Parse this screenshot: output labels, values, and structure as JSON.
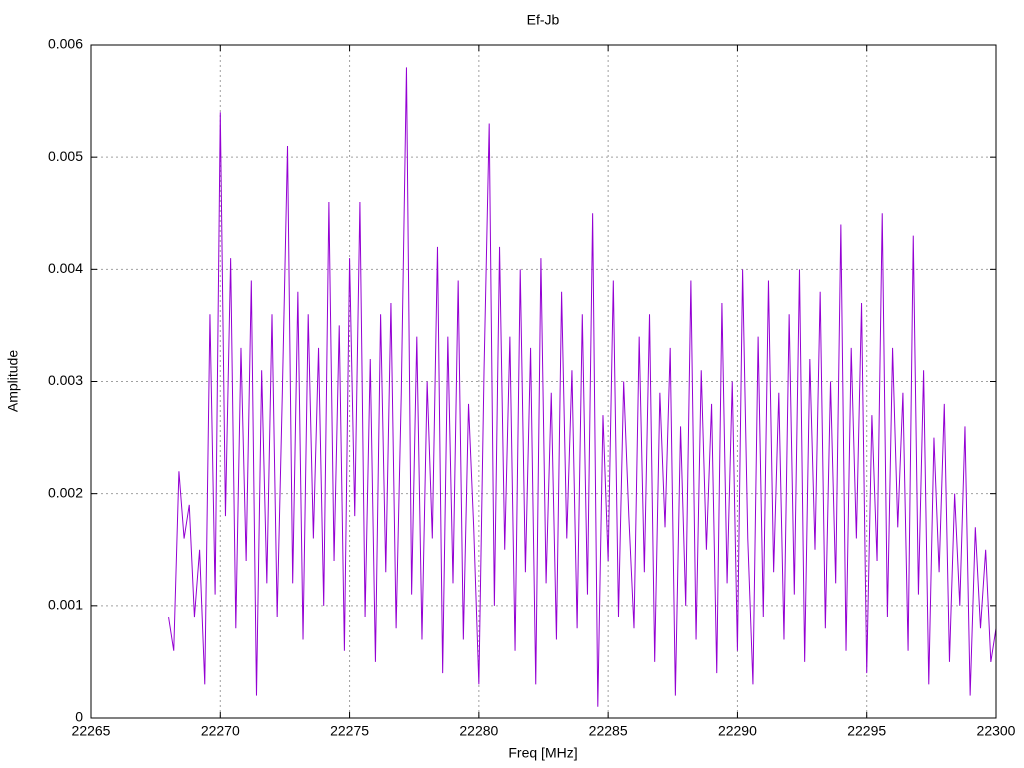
{
  "chart_data": {
    "type": "line",
    "title": "Ef-Jb",
    "xlabel": "Freq [MHz]",
    "ylabel": "Amplitude",
    "xlim": [
      22265,
      22300
    ],
    "xticks": [
      22265,
      22270,
      22275,
      22280,
      22285,
      22290,
      22295,
      22300
    ],
    "ylim": [
      0,
      0.006
    ],
    "yticks": [
      0,
      0.001,
      0.002,
      0.003,
      0.004,
      0.005,
      0.006
    ],
    "grid": true,
    "x": [
      22268.0,
      22268.2,
      22268.4,
      22268.6,
      22268.8,
      22269.0,
      22269.2,
      22269.4,
      22269.6,
      22269.8,
      22270.0,
      22270.2,
      22270.4,
      22270.6,
      22270.8,
      22271.0,
      22271.2,
      22271.4,
      22271.6,
      22271.8,
      22272.0,
      22272.2,
      22272.4,
      22272.6,
      22272.8,
      22273.0,
      22273.2,
      22273.4,
      22273.6,
      22273.8,
      22274.0,
      22274.2,
      22274.4,
      22274.6,
      22274.8,
      22275.0,
      22275.2,
      22275.4,
      22275.6,
      22275.8,
      22276.0,
      22276.2,
      22276.4,
      22276.6,
      22276.8,
      22277.0,
      22277.2,
      22277.4,
      22277.6,
      22277.8,
      22278.0,
      22278.2,
      22278.4,
      22278.6,
      22278.8,
      22279.0,
      22279.2,
      22279.4,
      22279.6,
      22279.8,
      22280.0,
      22280.2,
      22280.4,
      22280.6,
      22280.8,
      22281.0,
      22281.2,
      22281.4,
      22281.6,
      22281.8,
      22282.0,
      22282.2,
      22282.4,
      22282.6,
      22282.8,
      22283.0,
      22283.2,
      22283.4,
      22283.6,
      22283.8,
      22284.0,
      22284.2,
      22284.4,
      22284.6,
      22284.8,
      22285.0,
      22285.2,
      22285.4,
      22285.6,
      22285.8,
      22286.0,
      22286.2,
      22286.4,
      22286.6,
      22286.8,
      22287.0,
      22287.2,
      22287.4,
      22287.6,
      22287.8,
      22288.0,
      22288.2,
      22288.4,
      22288.6,
      22288.8,
      22289.0,
      22289.2,
      22289.4,
      22289.6,
      22289.8,
      22290.0,
      22290.2,
      22290.4,
      22290.6,
      22290.8,
      22291.0,
      22291.2,
      22291.4,
      22291.6,
      22291.8,
      22292.0,
      22292.2,
      22292.4,
      22292.6,
      22292.8,
      22293.0,
      22293.2,
      22293.4,
      22293.6,
      22293.8,
      22294.0,
      22294.2,
      22294.4,
      22294.6,
      22294.8,
      22295.0,
      22295.2,
      22295.4,
      22295.6,
      22295.8,
      22296.0,
      22296.2,
      22296.4,
      22296.6,
      22296.8,
      22297.0,
      22297.2,
      22297.4,
      22297.6,
      22297.8,
      22298.0,
      22298.2,
      22298.4,
      22298.6,
      22298.8,
      22299.0,
      22299.2,
      22299.4,
      22299.6,
      22299.8,
      22300.0
    ],
    "series": [
      {
        "color": "#9400d3",
        "values": [
          0.0009,
          0.0006,
          0.0022,
          0.0016,
          0.0019,
          0.0009,
          0.0015,
          0.0003,
          0.0036,
          0.0011,
          0.0054,
          0.0018,
          0.0041,
          0.0008,
          0.0033,
          0.0014,
          0.0039,
          0.0002,
          0.0031,
          0.0012,
          0.0036,
          0.0009,
          0.0029,
          0.0051,
          0.0012,
          0.0038,
          0.0007,
          0.0036,
          0.0016,
          0.0033,
          0.001,
          0.0046,
          0.0014,
          0.0035,
          0.0006,
          0.0041,
          0.0018,
          0.0046,
          0.0009,
          0.0032,
          0.0005,
          0.0036,
          0.0013,
          0.0037,
          0.0008,
          0.0029,
          0.0058,
          0.0011,
          0.0034,
          0.0007,
          0.003,
          0.0016,
          0.0042,
          0.0004,
          0.0034,
          0.0012,
          0.0039,
          0.0007,
          0.0028,
          0.0017,
          0.0003,
          0.0031,
          0.0053,
          0.001,
          0.0042,
          0.0015,
          0.0034,
          0.0006,
          0.004,
          0.0013,
          0.0033,
          0.0003,
          0.0041,
          0.0012,
          0.0029,
          0.0007,
          0.0038,
          0.0016,
          0.0031,
          0.0008,
          0.0036,
          0.0011,
          0.0045,
          0.0001,
          0.0027,
          0.0014,
          0.0039,
          0.0009,
          0.003,
          0.0018,
          0.0008,
          0.0034,
          0.0013,
          0.0036,
          0.0005,
          0.0029,
          0.0017,
          0.0033,
          0.0002,
          0.0026,
          0.001,
          0.0039,
          0.0007,
          0.0031,
          0.0015,
          0.0028,
          0.0004,
          0.0037,
          0.0012,
          0.003,
          0.0006,
          0.004,
          0.0016,
          0.0003,
          0.0034,
          0.0009,
          0.0039,
          0.0013,
          0.0029,
          0.0007,
          0.0036,
          0.0011,
          0.004,
          0.0005,
          0.0032,
          0.0015,
          0.0038,
          0.0008,
          0.003,
          0.0012,
          0.0044,
          0.0006,
          0.0033,
          0.0016,
          0.0037,
          0.0004,
          0.0027,
          0.0014,
          0.0045,
          0.0009,
          0.0033,
          0.0017,
          0.0029,
          0.0006,
          0.0043,
          0.0011,
          0.0031,
          0.0003,
          0.0025,
          0.0013,
          0.0028,
          0.0005,
          0.002,
          0.001,
          0.0026,
          0.0002,
          0.0017,
          0.0008,
          0.0015,
          0.0005,
          0.0008
        ]
      }
    ]
  }
}
